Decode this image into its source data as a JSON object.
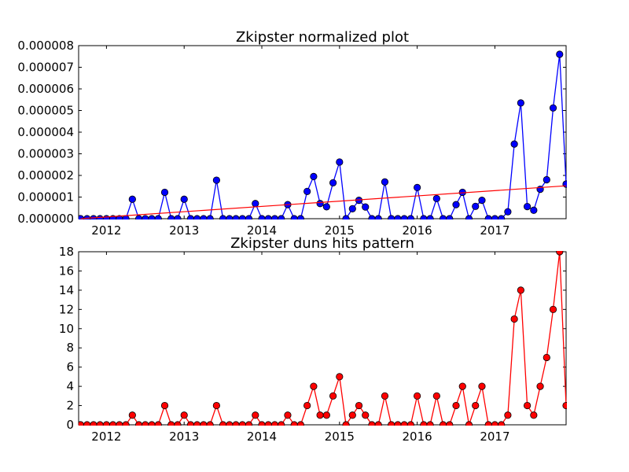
{
  "chart_data": [
    {
      "type": "line",
      "title": "Zkipster normalized plot",
      "xlabel": "",
      "ylabel": "",
      "x_tick_labels": [
        "2012",
        "2013",
        "2014",
        "2015",
        "2016",
        "2017"
      ],
      "y_tick_labels": [
        "0.000000",
        "0.000001",
        "0.000002",
        "0.000003",
        "0.000004",
        "0.000005",
        "0.000006",
        "0.000007",
        "0.000008"
      ],
      "ylim": [
        0,
        8e-06
      ],
      "grid": false,
      "months": [
        "2011-09",
        "2011-10",
        "2011-11",
        "2011-12",
        "2012-01",
        "2012-02",
        "2012-03",
        "2012-04",
        "2012-05",
        "2012-06",
        "2012-07",
        "2012-08",
        "2012-09",
        "2012-10",
        "2012-11",
        "2012-12",
        "2013-01",
        "2013-02",
        "2013-03",
        "2013-04",
        "2013-05",
        "2013-06",
        "2013-07",
        "2013-08",
        "2013-09",
        "2013-10",
        "2013-11",
        "2013-12",
        "2014-01",
        "2014-02",
        "2014-03",
        "2014-04",
        "2014-05",
        "2014-06",
        "2014-07",
        "2014-08",
        "2014-09",
        "2014-10",
        "2014-11",
        "2014-12",
        "2015-01",
        "2015-02",
        "2015-03",
        "2015-04",
        "2015-05",
        "2015-06",
        "2015-07",
        "2015-08",
        "2015-09",
        "2015-10",
        "2015-11",
        "2015-12",
        "2016-01",
        "2016-02",
        "2016-03",
        "2016-04",
        "2016-05",
        "2016-06",
        "2016-07",
        "2016-08",
        "2016-09",
        "2016-10",
        "2016-11",
        "2016-12",
        "2017-01",
        "2017-02",
        "2017-03",
        "2017-04",
        "2017-05",
        "2017-06",
        "2017-07",
        "2017-08",
        "2017-09",
        "2017-10",
        "2017-11",
        "2017-12"
      ],
      "series": [
        {
          "color": "#0000ff",
          "marker": "circle",
          "values": [
            0,
            0,
            0,
            0,
            0,
            0,
            0,
            0,
            9e-07,
            0,
            0,
            0,
            0,
            1.22e-06,
            0,
            0,
            9e-07,
            0,
            0,
            0,
            0,
            1.78e-06,
            0,
            0,
            0,
            0,
            0,
            7e-07,
            0,
            0,
            0,
            0,
            6.5e-07,
            0,
            0,
            1.26e-06,
            1.95e-06,
            7e-07,
            5.5e-07,
            1.66e-06,
            2.62e-06,
            0,
            4.6e-07,
            8.5e-07,
            5.4e-07,
            0,
            0,
            1.7e-06,
            0,
            0,
            0,
            0,
            1.44e-06,
            0,
            0,
            9.3e-07,
            0,
            0,
            6.5e-07,
            1.22e-06,
            0,
            5.7e-07,
            8.5e-07,
            0,
            0,
            0,
            3.2e-07,
            3.45e-06,
            5.35e-06,
            5.6e-07,
            3.9e-07,
            1.36e-06,
            1.8e-06,
            5.12e-06,
            7.6e-06,
            1.6e-06
          ]
        },
        {
          "type": "trendline",
          "color": "#ff0000",
          "start": [
            "2011-09",
            0
          ],
          "end": [
            "2017-12",
            1.52e-06
          ]
        }
      ]
    },
    {
      "type": "line",
      "title": "Zkipster duns hits pattern",
      "xlabel": "",
      "ylabel": "",
      "x_tick_labels": [
        "2012",
        "2013",
        "2014",
        "2015",
        "2016",
        "2017"
      ],
      "y_tick_labels": [
        "0",
        "2",
        "4",
        "6",
        "8",
        "10",
        "12",
        "14",
        "16",
        "18"
      ],
      "ylim": [
        0,
        18
      ],
      "grid": false,
      "series": [
        {
          "color": "#ff0000",
          "marker": "circle",
          "values": [
            0,
            0,
            0,
            0,
            0,
            0,
            0,
            0,
            1,
            0,
            0,
            0,
            0,
            2,
            0,
            0,
            1,
            0,
            0,
            0,
            0,
            2,
            0,
            0,
            0,
            0,
            0,
            1,
            0,
            0,
            0,
            0,
            1,
            0,
            0,
            2,
            4,
            1,
            1,
            3,
            5,
            0,
            1,
            2,
            1,
            0,
            0,
            3,
            0,
            0,
            0,
            0,
            3,
            0,
            0,
            3,
            0,
            0,
            2,
            4,
            0,
            2,
            4,
            0,
            0,
            0,
            1,
            11,
            14,
            2,
            1,
            4,
            7,
            12,
            18,
            2
          ]
        }
      ]
    }
  ]
}
